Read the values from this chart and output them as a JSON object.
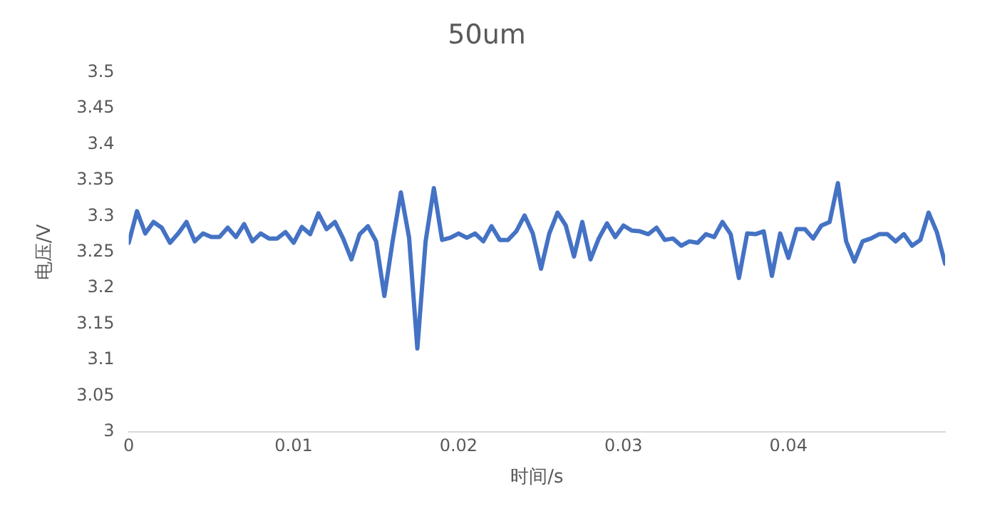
{
  "chart_data": {
    "type": "line",
    "title": "50um",
    "xlabel": "时间/s",
    "ylabel": "电压/V",
    "x": [
      0,
      0.0005,
      0.001,
      0.0015,
      0.002,
      0.0025,
      0.003,
      0.0035,
      0.004,
      0.0045,
      0.005,
      0.0055,
      0.006,
      0.0065,
      0.007,
      0.0075,
      0.008,
      0.0085,
      0.009,
      0.0095,
      0.01,
      0.0105,
      0.011,
      0.0115,
      0.012,
      0.0125,
      0.013,
      0.0135,
      0.014,
      0.0145,
      0.015,
      0.0155,
      0.016,
      0.0165,
      0.017,
      0.0175,
      0.018,
      0.0185,
      0.019,
      0.0195,
      0.02,
      0.0205,
      0.021,
      0.0215,
      0.022,
      0.0225,
      0.023,
      0.0235,
      0.024,
      0.0245,
      0.025,
      0.0255,
      0.026,
      0.0265,
      0.027,
      0.0275,
      0.028,
      0.0285,
      0.029,
      0.0295,
      0.03,
      0.0305,
      0.031,
      0.0315,
      0.032,
      0.0325,
      0.033,
      0.0335,
      0.034,
      0.0345,
      0.035,
      0.0355,
      0.036,
      0.0365,
      0.037,
      0.0375,
      0.038,
      0.0385,
      0.039,
      0.0395,
      0.04,
      0.0405,
      0.041,
      0.0415,
      0.042,
      0.0425,
      0.043,
      0.0435,
      0.044,
      0.0445,
      0.045,
      0.0455,
      0.046,
      0.0465,
      0.047,
      0.0475,
      0.048,
      0.0485,
      0.049,
      0.0495
    ],
    "series": [
      {
        "color": "#4472c4",
        "values": [
          3.263,
          3.307,
          3.276,
          3.292,
          3.284,
          3.263,
          3.276,
          3.292,
          3.265,
          3.276,
          3.271,
          3.271,
          3.284,
          3.271,
          3.289,
          3.265,
          3.276,
          3.269,
          3.269,
          3.278,
          3.263,
          3.285,
          3.275,
          3.304,
          3.282,
          3.292,
          3.269,
          3.24,
          3.275,
          3.286,
          3.265,
          3.189,
          3.265,
          3.333,
          3.27,
          3.116,
          3.265,
          3.339,
          3.267,
          3.27,
          3.276,
          3.27,
          3.276,
          3.265,
          3.286,
          3.267,
          3.267,
          3.279,
          3.301,
          3.276,
          3.227,
          3.276,
          3.305,
          3.287,
          3.244,
          3.292,
          3.24,
          3.269,
          3.29,
          3.271,
          3.287,
          3.28,
          3.279,
          3.275,
          3.284,
          3.267,
          3.269,
          3.259,
          3.265,
          3.263,
          3.275,
          3.271,
          3.292,
          3.275,
          3.214,
          3.276,
          3.275,
          3.279,
          3.217,
          3.276,
          3.242,
          3.282,
          3.282,
          3.269,
          3.287,
          3.292,
          3.346,
          3.265,
          3.237,
          3.265,
          3.269,
          3.275,
          3.275,
          3.265,
          3.275,
          3.259,
          3.267,
          3.305,
          3.278,
          3.234
        ]
      }
    ],
    "xlim": [
      0,
      0.0495
    ],
    "xticks": [
      0,
      0.01,
      0.02,
      0.03,
      0.04
    ],
    "ylim": [
      3,
      3.5
    ],
    "yticks": [
      3,
      3.05,
      3.1,
      3.15,
      3.2,
      3.25,
      3.3,
      3.35,
      3.4,
      3.45,
      3.5
    ],
    "grid": false,
    "legend": false,
    "marker": "none",
    "line_style": "solid"
  }
}
